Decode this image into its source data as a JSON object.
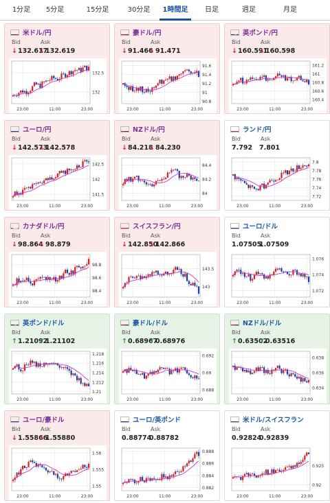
{
  "tabs": [
    {
      "label": "1分足",
      "active": false
    },
    {
      "label": "5分足",
      "active": false
    },
    {
      "label": "15分足",
      "active": false
    },
    {
      "label": "30分足",
      "active": false
    },
    {
      "label": "1時間足",
      "active": true
    },
    {
      "label": "日足",
      "active": false
    },
    {
      "label": "週足",
      "active": false
    },
    {
      "label": "月足",
      "active": false
    }
  ],
  "labels": {
    "bid": "Bid",
    "ask": "Ask"
  },
  "colors": {
    "up_candle": "#d42020",
    "down_candle": "#1a3fa0",
    "moving_average": "#cc33cc",
    "arrow_down": "#d42020",
    "arrow_up": "#229922"
  },
  "cards": [
    {
      "pair": "米ドル/円",
      "flag": "us",
      "trend": "down",
      "bid": "132.617",
      "ask": "132.619",
      "chart_data": {
        "type": "candlestick",
        "x_ticks": [
          "23:00",
          "11:00",
          "23:00"
        ],
        "y_ticks": [
          "132.5",
          "132"
        ],
        "ylim": [
          131.7,
          132.8
        ]
      }
    },
    {
      "pair": "豪ドル/円",
      "flag": "au",
      "trend": "down",
      "bid": "91.466",
      "ask": "91.471",
      "chart_data": {
        "type": "candlestick",
        "x_ticks": [
          "23:00",
          "11:00",
          "23:00"
        ],
        "y_ticks": [
          "91.6",
          "91.4",
          "91.2",
          "91",
          "90.8"
        ],
        "ylim": [
          90.75,
          91.7
        ]
      }
    },
    {
      "pair": "英ポンド/円",
      "flag": "gb",
      "trend": "down",
      "bid": "160.591",
      "ask": "160.598",
      "chart_data": {
        "type": "candlestick",
        "x_ticks": [
          "23:00",
          "11:00",
          "23:00"
        ],
        "y_ticks": [
          "161.2",
          "161",
          "160.8",
          "160.6",
          "160.4"
        ],
        "ylim": [
          160.3,
          161.3
        ]
      }
    },
    {
      "pair": "ユーロ/円",
      "flag": "eu",
      "trend": "down",
      "bid": "142.573",
      "ask": "142.578",
      "chart_data": {
        "type": "candlestick",
        "x_ticks": [
          "23:00",
          "11:00",
          "23:00"
        ],
        "y_ticks": [
          "142.5",
          "142",
          "141.5"
        ],
        "ylim": [
          141.3,
          142.7
        ]
      }
    },
    {
      "pair": "NZドル/円",
      "flag": "nz",
      "trend": "down",
      "bid": "84.218",
      "ask": "84.230",
      "chart_data": {
        "type": "candlestick",
        "x_ticks": [
          "23:00",
          "11:00",
          "23:00"
        ],
        "y_ticks": [
          "84.4",
          "84.2",
          "84"
        ],
        "ylim": [
          83.9,
          84.5
        ]
      }
    },
    {
      "pair": "ランド/円",
      "flag": "za",
      "trend": "flat",
      "bid": "7.792",
      "ask": "7.801",
      "chart_data": {
        "type": "candlestick",
        "x_ticks": [
          "23:00",
          "11:00",
          "23:00"
        ],
        "y_ticks": [
          "7.8",
          "7.78",
          "7.76",
          "7.74",
          "7.72"
        ],
        "ylim": [
          7.71,
          7.81
        ]
      }
    },
    {
      "pair": "カナダドル/円",
      "flag": "ca",
      "trend": "down",
      "bid": "98.864",
      "ask": "98.879",
      "chart_data": {
        "type": "candlestick",
        "x_ticks": [
          "23:00",
          "11:00",
          "23:00"
        ],
        "y_ticks": [
          "98.8",
          "98.6",
          "98.4"
        ],
        "ylim": [
          98.3,
          98.95
        ]
      }
    },
    {
      "pair": "スイスフラン/円",
      "flag": "ch",
      "trend": "down",
      "bid": "142.850",
      "ask": "142.866",
      "chart_data": {
        "type": "candlestick",
        "x_ticks": [
          "23:00",
          "11:00",
          "23:00"
        ],
        "y_ticks": [
          "143.5",
          "143"
        ],
        "ylim": [
          142.7,
          143.9
        ]
      }
    },
    {
      "pair": "ユーロ/ドル",
      "flag": "eu",
      "trend": "flat",
      "bid": "1.07505",
      "ask": "1.07509",
      "chart_data": {
        "type": "candlestick",
        "x_ticks": [
          "23:00",
          "11:00",
          "23:00"
        ],
        "y_ticks": [
          "1.076",
          "1.074",
          "1.072"
        ],
        "ylim": [
          1.0712,
          1.0765
        ]
      }
    },
    {
      "pair": "英ポンド/ドル",
      "flag": "gb",
      "trend": "up",
      "bid": "1.21092",
      "ask": "1.21102",
      "chart_data": {
        "type": "candlestick",
        "x_ticks": [
          "23:00",
          "11:00",
          "23:00"
        ],
        "y_ticks": [
          "1.218",
          "1.216",
          "1.214",
          "1.212",
          "1.21"
        ],
        "ylim": [
          1.2095,
          1.2185
        ]
      }
    },
    {
      "pair": "豪ドル/ドル",
      "flag": "au",
      "trend": "up",
      "bid": "0.68967",
      "ask": "0.68976",
      "chart_data": {
        "type": "candlestick",
        "x_ticks": [
          "23:00",
          "11:00",
          "23:00"
        ],
        "y_ticks": [
          "0.692",
          "0.69",
          "0.688"
        ],
        "ylim": [
          0.6875,
          0.6925
        ]
      }
    },
    {
      "pair": "NZドル/ドル",
      "flag": "nz",
      "trend": "up",
      "bid": "0.63502",
      "ask": "0.63516",
      "chart_data": {
        "type": "candlestick",
        "x_ticks": [
          "23:00",
          "11:00",
          "23:00"
        ],
        "y_ticks": [
          "0.638",
          "0.636",
          "0.634"
        ],
        "ylim": [
          0.6332,
          0.6388
        ]
      }
    },
    {
      "pair": "ユーロ/豪ドル",
      "flag": "eu",
      "trend": "down",
      "bid": "1.55866",
      "ask": "1.55880",
      "chart_data": {
        "type": "candlestick",
        "x_ticks": [
          "23:00",
          "11:00",
          "23:00"
        ],
        "y_ticks": [
          "1.56",
          "1.555",
          "1.55"
        ],
        "ylim": [
          1.5485,
          1.5615
        ]
      }
    },
    {
      "pair": "ユーロ/英ポンド",
      "flag": "eu",
      "trend": "flat",
      "bid": "0.88774",
      "ask": "0.88782",
      "chart_data": {
        "type": "candlestick",
        "x_ticks": [
          "23:00",
          "11:00",
          "23:00"
        ],
        "y_ticks": [
          "0.888",
          "0.886",
          "0.884",
          "0.882"
        ],
        "ylim": [
          0.8815,
          0.8885
        ]
      }
    },
    {
      "pair": "米ドル/スイスフラン",
      "flag": "us",
      "trend": "flat",
      "bid": "0.92824",
      "ask": "0.92839",
      "chart_data": {
        "type": "candlestick",
        "x_ticks": [
          "23:00",
          "11:00",
          "23:00"
        ],
        "y_ticks": [
          "0.925",
          "0.92"
        ],
        "ylim": [
          0.9185,
          0.9295
        ]
      }
    }
  ]
}
